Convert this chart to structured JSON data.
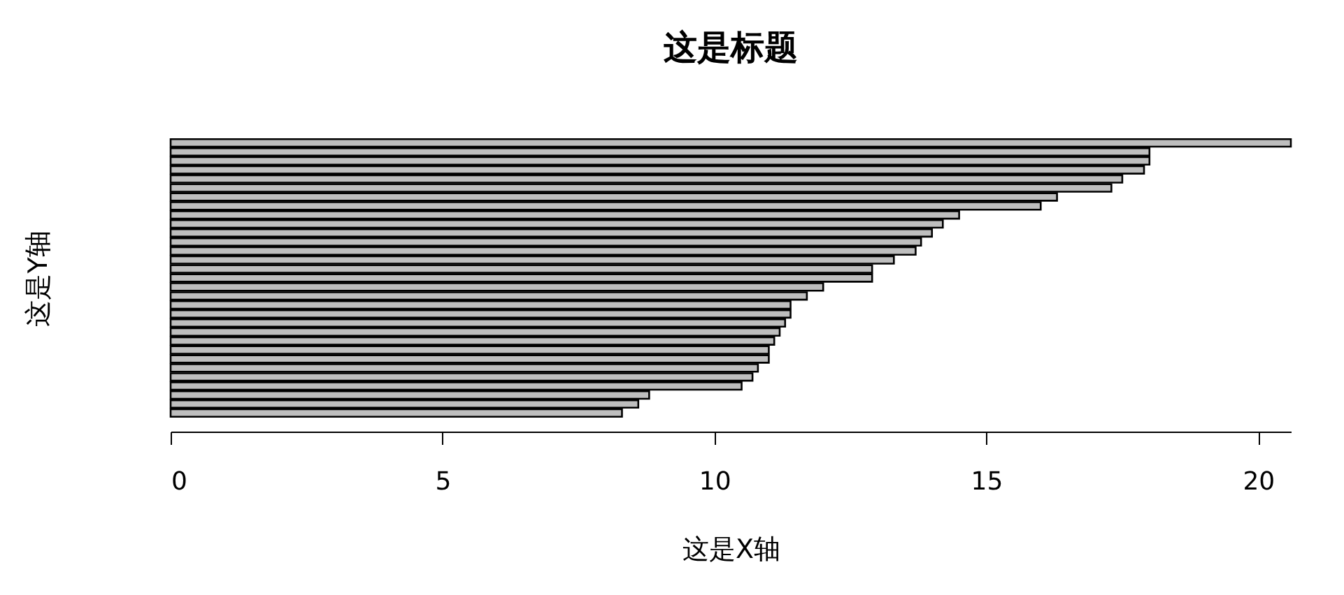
{
  "chart_data": {
    "type": "bar",
    "orientation": "horizontal",
    "title": "这是标题",
    "xlabel": "这是X轴",
    "ylabel": "这是Y轴",
    "categories": [
      null,
      null,
      null,
      null,
      null,
      null,
      null,
      null,
      null,
      null,
      null,
      null,
      null,
      null,
      null,
      null,
      null,
      null,
      null,
      null,
      null,
      null,
      null,
      null,
      null,
      null,
      null,
      null,
      null,
      null,
      null
    ],
    "values": [
      20.6,
      18.0,
      18.0,
      17.9,
      17.5,
      17.3,
      16.3,
      16.0,
      14.5,
      14.2,
      14.0,
      13.8,
      13.7,
      13.3,
      12.9,
      12.9,
      12.0,
      11.7,
      11.4,
      11.4,
      11.3,
      11.2,
      11.1,
      11.0,
      11.0,
      10.8,
      10.7,
      10.5,
      8.8,
      8.6,
      8.3
    ],
    "color": "#bebebe",
    "xlim": [
      0,
      20.6
    ],
    "xticks": [
      0,
      5,
      10,
      15,
      20
    ],
    "tick_labels": "x",
    "grid": false
  }
}
